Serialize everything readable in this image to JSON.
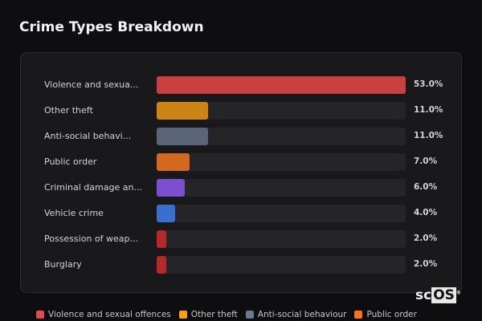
{
  "title": "Crime Types Breakdown",
  "chart_data": {
    "type": "bar",
    "orientation": "horizontal",
    "categories": [
      "Violence and sexua...",
      "Other theft",
      "Anti-social behavi...",
      "Public order",
      "Criminal damage an...",
      "Vehicle crime",
      "Possession of weap...",
      "Burglary"
    ],
    "values": [
      53.0,
      11.0,
      11.0,
      7.0,
      6.0,
      4.0,
      2.0,
      2.0
    ],
    "value_labels": [
      "53.0%",
      "11.0%",
      "11.0%",
      "7.0%",
      "6.0%",
      "4.0%",
      "2.0%",
      "2.0%"
    ],
    "colors": [
      "#c94040",
      "#cc8515",
      "#5a6577",
      "#d2691e",
      "#7b4fd0",
      "#3a6fd0",
      "#b82828",
      "#b82828"
    ],
    "xlim": [
      0,
      53
    ],
    "grid": false,
    "legend_position": "bottom",
    "legend": [
      {
        "label": "Violence and sexual offences",
        "color": "#e5484d"
      },
      {
        "label": "Other theft",
        "color": "#f5a20c"
      },
      {
        "label": "Anti-social behaviour",
        "color": "#6b7a90"
      },
      {
        "label": "Public order",
        "color": "#f97316"
      }
    ]
  },
  "logo": {
    "text_a": "sc",
    "text_b": "OS",
    "mark": "®"
  }
}
